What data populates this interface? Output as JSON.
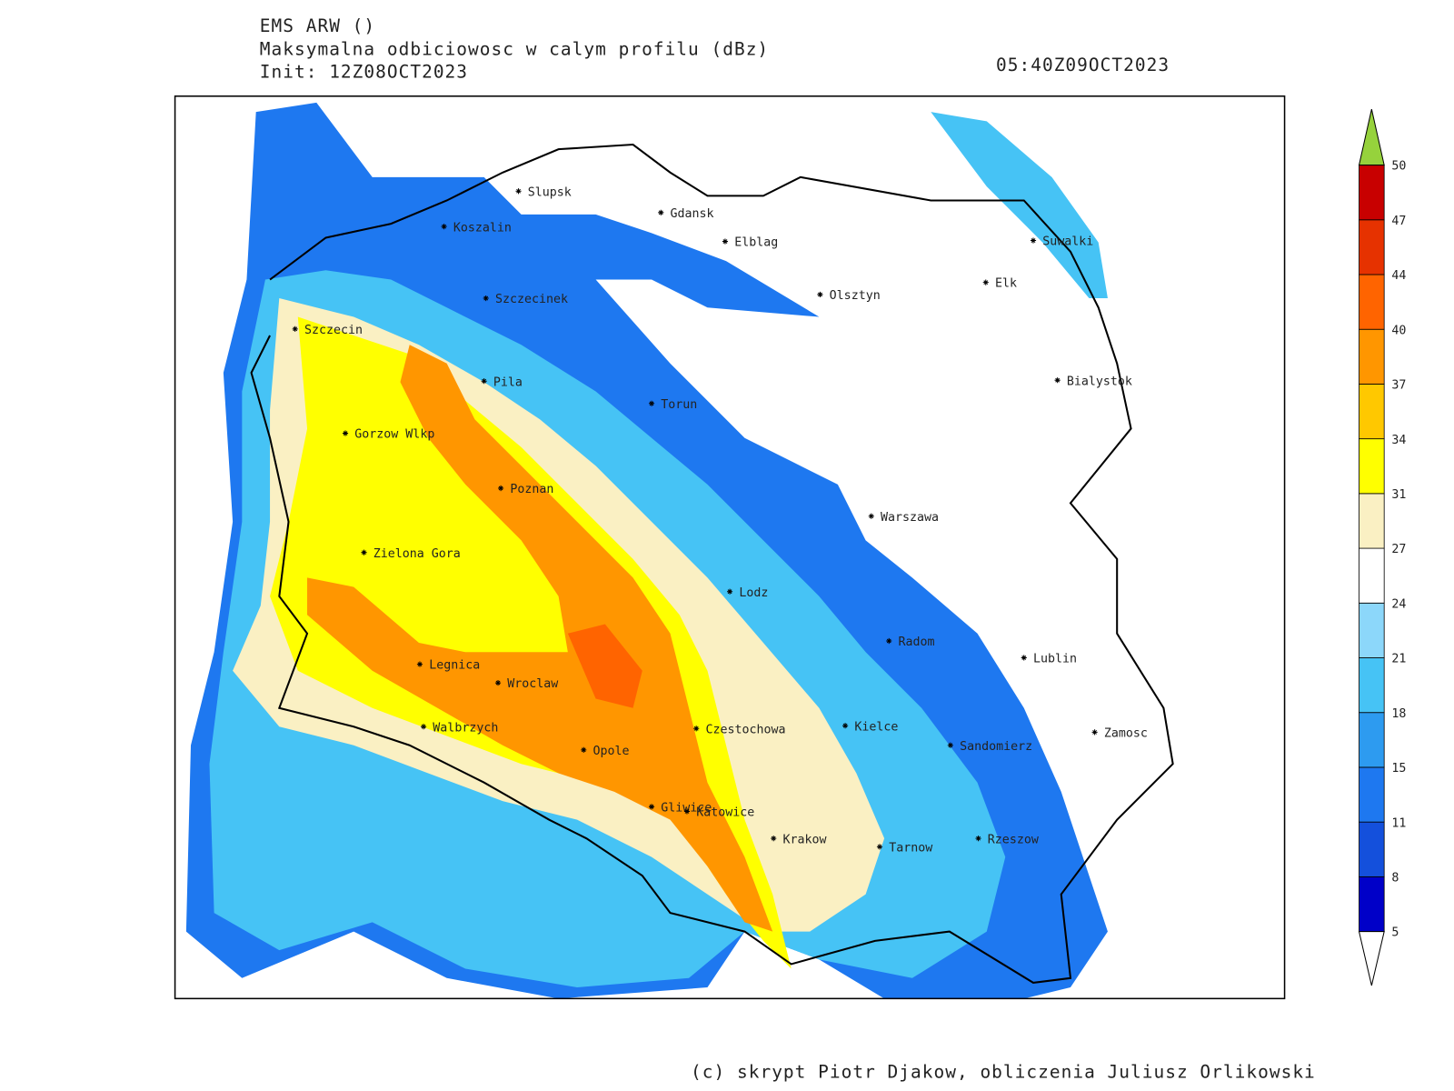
{
  "header": {
    "model": "EMS ARW ()",
    "field": "Maksymalna odbiciowosc w calym profilu (dBz)",
    "init": "Init: 12Z08OCT2023",
    "valid": "05:40Z09OCT2023"
  },
  "cities": [
    "Slupsk",
    "Gdansk",
    "Koszalin",
    "Elblag",
    "Suwalki",
    "Elk",
    "Szczecinek",
    "Olsztyn",
    "Szczecin",
    "Bialystok",
    "Pila",
    "Torun",
    "Gorzow Wlkp",
    "Poznan",
    "Warszawa",
    "Zielona Gora",
    "Lodz",
    "Radom",
    "Lublin",
    "Legnica",
    "Wroclaw",
    "Walbrzych",
    "Czestochowa",
    "Kielce",
    "Zamosc",
    "Sandomierz",
    "Opole",
    "Gliwice",
    "Katowice",
    "Krakow",
    "Tarnow",
    "Rzeszow"
  ],
  "legend": {
    "levels": [
      5,
      8,
      11,
      15,
      18,
      21,
      24,
      27,
      31,
      34,
      37,
      40,
      44,
      47,
      50
    ],
    "colors": [
      "#0000c8",
      "#1450dc",
      "#1e78f0",
      "#2d9bf0",
      "#46c3f5",
      "#8cd7fa",
      "#ffffff",
      "#faf0c3",
      "#ffff00",
      "#ffc800",
      "#ff9600",
      "#ff6400",
      "#e63200",
      "#c80000"
    ],
    "over_color": "#96d23c",
    "under_color": "#ffffff"
  },
  "footer": "(c) skrypt Piotr Djakow, obliczenia Juliusz Orlikowski"
}
